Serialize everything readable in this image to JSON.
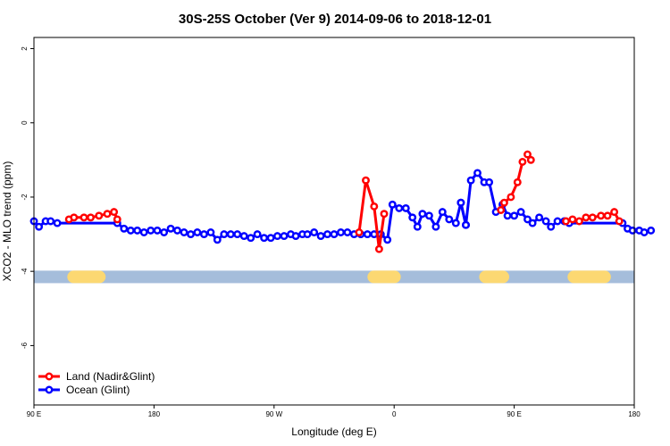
{
  "chart_data": {
    "type": "line",
    "title": "30S-25S October (Ver 9)   2014-09-06 to 2018-12-01",
    "xlabel": "Longitude (deg E)",
    "ylabel": "XCO2 - MLO trend (ppm)",
    "xlim": [
      90,
      450
    ],
    "ylim": [
      -7.6,
      2.3
    ],
    "x_ticks": [
      {
        "value": 90,
        "label": "90 E"
      },
      {
        "value": 180,
        "label": "180"
      },
      {
        "value": 270,
        "label": "90 W"
      },
      {
        "value": 360,
        "label": "0"
      },
      {
        "value": 450,
        "label": "90 E"
      },
      {
        "value": 540,
        "label": "180"
      }
    ],
    "y_ticks": [
      {
        "value": 2,
        "label": "2"
      },
      {
        "value": 0,
        "label": "0"
      },
      {
        "value": -2,
        "label": "-2"
      },
      {
        "value": -4,
        "label": "-4"
      },
      {
        "value": -6,
        "label": "-6"
      }
    ],
    "band": {
      "y": -4.15,
      "ocean_color": "#a5bddb",
      "land_color": "#fcd872",
      "land_segments": [
        [
          110,
          133
        ],
        [
          290,
          310
        ],
        [
          357,
          375
        ],
        [
          410,
          436
        ]
      ]
    },
    "legend": {
      "position": "bottom-left"
    },
    "series": [
      {
        "name": "Land (Nadir&Glint)",
        "color": "#ff0000",
        "segments": [
          [
            [
              111,
              -2.6
            ],
            [
              114,
              -2.55
            ],
            [
              120,
              -2.55
            ],
            [
              124,
              -2.55
            ],
            [
              129,
              -2.5
            ],
            [
              134,
              -2.45
            ],
            [
              138,
              -2.4
            ],
            [
              140,
              -2.6
            ]
          ],
          [
            [
              285,
              -2.95
            ],
            [
              289,
              -1.55
            ],
            [
              294,
              -2.25
            ],
            [
              297,
              -3.4
            ],
            [
              300,
              -2.45
            ]
          ],
          [
            [
              370,
              -2.35
            ],
            [
              372,
              -2.15
            ],
            [
              376,
              -2.0
            ],
            [
              380,
              -1.6
            ],
            [
              383,
              -1.05
            ]
          ],
          [
            [
              386,
              -0.85
            ],
            [
              388,
              -1.0
            ]
          ],
          [
            [
              409,
              -2.65
            ],
            [
              413,
              -2.6
            ],
            [
              417,
              -2.65
            ],
            [
              421,
              -2.55
            ],
            [
              425,
              -2.55
            ],
            [
              430,
              -2.5
            ],
            [
              434,
              -2.5
            ],
            [
              438,
              -2.4
            ],
            [
              441,
              -2.65
            ]
          ]
        ]
      },
      {
        "name": "Ocean (Glint)",
        "color": "#0000ff",
        "segments": [
          [
            [
              90,
              -2.65
            ],
            [
              93,
              -2.8
            ],
            [
              97,
              -2.65
            ],
            [
              100,
              -2.65
            ],
            [
              104,
              -2.7
            ],
            [
              140,
              -2.7
            ],
            [
              144,
              -2.85
            ],
            [
              148,
              -2.9
            ],
            [
              152,
              -2.9
            ],
            [
              156,
              -2.95
            ],
            [
              160,
              -2.9
            ],
            [
              164,
              -2.9
            ],
            [
              168,
              -2.95
            ],
            [
              172,
              -2.85
            ],
            [
              176,
              -2.9
            ],
            [
              180,
              -2.95
            ],
            [
              184,
              -3.0
            ],
            [
              188,
              -2.95
            ],
            [
              192,
              -3.0
            ],
            [
              196,
              -2.95
            ],
            [
              200,
              -3.15
            ],
            [
              204,
              -3.0
            ],
            [
              208,
              -3.0
            ],
            [
              212,
              -3.0
            ],
            [
              216,
              -3.05
            ],
            [
              220,
              -3.1
            ],
            [
              224,
              -3.0
            ],
            [
              228,
              -3.1
            ],
            [
              232,
              -3.1
            ],
            [
              236,
              -3.05
            ],
            [
              240,
              -3.05
            ],
            [
              244,
              -3.0
            ],
            [
              247,
              -3.05
            ],
            [
              251,
              -3.0
            ],
            [
              254,
              -3.0
            ],
            [
              258,
              -2.95
            ],
            [
              262,
              -3.05
            ],
            [
              266,
              -3.0
            ],
            [
              270,
              -3.0
            ],
            [
              274,
              -2.95
            ],
            [
              278,
              -2.95
            ],
            [
              282,
              -3.0
            ],
            [
              286,
              -3.0
            ],
            [
              290,
              -3.0
            ],
            [
              294,
              -3.0
            ],
            [
              298,
              -3.0
            ],
            [
              302,
              -3.15
            ],
            [
              305,
              -2.2
            ],
            [
              309,
              -2.3
            ],
            [
              313,
              -2.3
            ],
            [
              317,
              -2.55
            ],
            [
              320,
              -2.8
            ],
            [
              323,
              -2.45
            ],
            [
              327,
              -2.5
            ],
            [
              331,
              -2.8
            ],
            [
              335,
              -2.4
            ],
            [
              339,
              -2.6
            ],
            [
              343,
              -2.7
            ],
            [
              346,
              -2.15
            ],
            [
              349,
              -2.75
            ],
            [
              352,
              -1.55
            ],
            [
              356,
              -1.35
            ],
            [
              360,
              -1.6
            ],
            [
              363,
              -1.6
            ],
            [
              367,
              -2.4
            ],
            [
              371,
              -2.2
            ],
            [
              374,
              -2.5
            ],
            [
              378,
              -2.5
            ],
            [
              382,
              -2.4
            ],
            [
              386,
              -2.6
            ],
            [
              389,
              -2.7
            ],
            [
              393,
              -2.55
            ],
            [
              397,
              -2.65
            ],
            [
              400,
              -2.8
            ],
            [
              404,
              -2.65
            ],
            [
              408,
              -2.65
            ],
            [
              411,
              -2.7
            ],
            [
              443,
              -2.7
            ],
            [
              446,
              -2.85
            ],
            [
              449,
              -2.9
            ],
            [
              453,
              -2.9
            ],
            [
              456,
              -2.95
            ],
            [
              460,
              -2.9
            ]
          ],
          [
            [
              346,
              -2.15
            ],
            [
              349,
              -2.75
            ]
          ]
        ]
      }
    ]
  }
}
